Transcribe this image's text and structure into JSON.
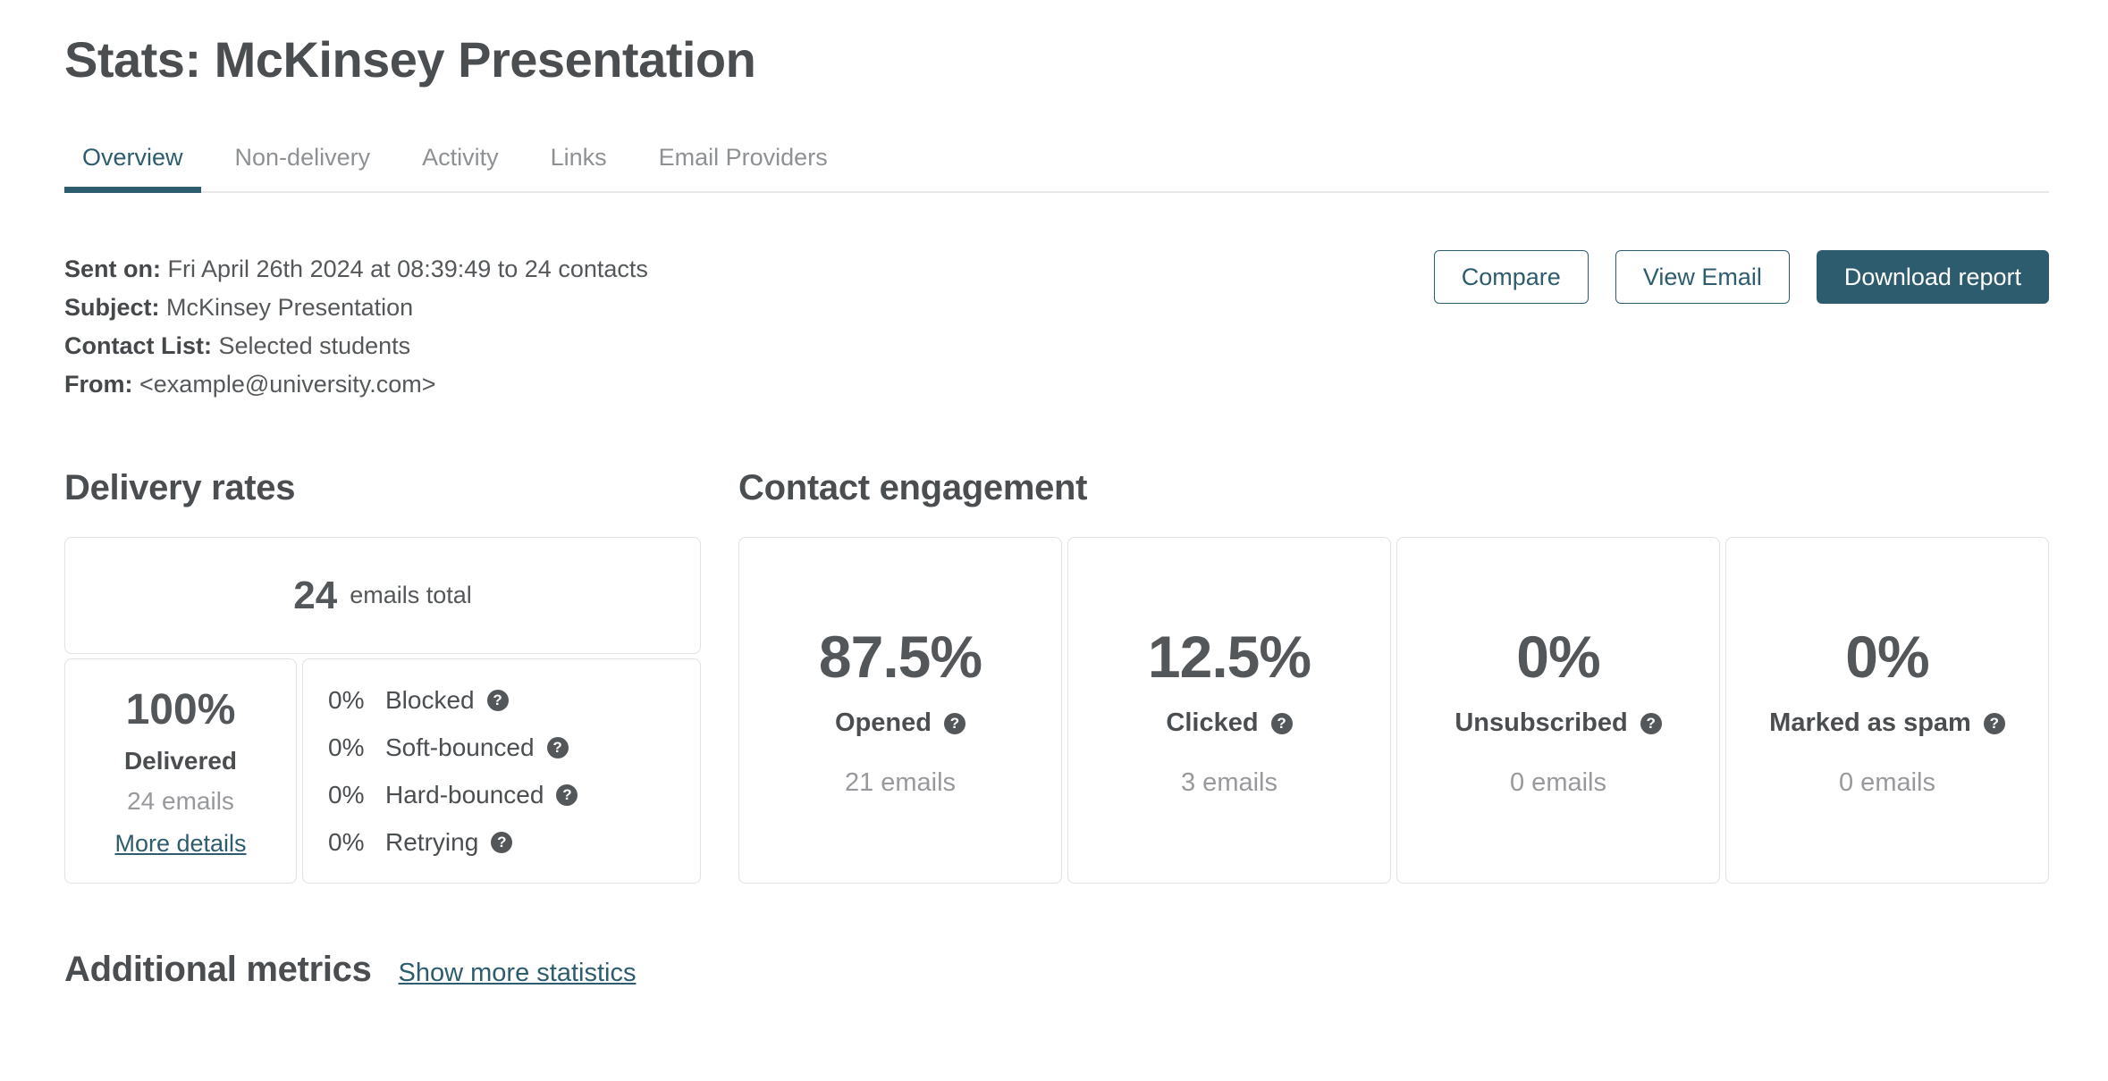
{
  "colors": {
    "accent": "#2e5c6f",
    "help_icon_bg": "#54575a",
    "muted_text": "#97999c"
  },
  "icons": {
    "help": "?"
  },
  "header": {
    "title": "Stats: McKinsey Presentation"
  },
  "tabs": [
    {
      "label": "Overview",
      "active": true
    },
    {
      "label": "Non-delivery",
      "active": false
    },
    {
      "label": "Activity",
      "active": false
    },
    {
      "label": "Links",
      "active": false
    },
    {
      "label": "Email Providers",
      "active": false
    }
  ],
  "campaign_meta": [
    {
      "label": "Sent on:",
      "value": "Fri April 26th 2024 at 08:39:49 to 24 contacts"
    },
    {
      "label": "Subject:",
      "value": "McKinsey Presentation"
    },
    {
      "label": "Contact List:",
      "value": "Selected students"
    },
    {
      "label": "From:",
      "value": "<example@university.com>"
    }
  ],
  "actions": {
    "compare": "Compare",
    "view_email": "View Email",
    "download_report": "Download report"
  },
  "delivery": {
    "heading": "Delivery rates",
    "total": {
      "value": "24",
      "label": "emails total"
    },
    "delivered": {
      "pct": "100%",
      "label": "Delivered",
      "emails": "24 emails",
      "link": "More details"
    },
    "breakdown": [
      {
        "pct": "0%",
        "label": "Blocked"
      },
      {
        "pct": "0%",
        "label": "Soft-bounced"
      },
      {
        "pct": "0%",
        "label": "Hard-bounced"
      },
      {
        "pct": "0%",
        "label": "Retrying"
      }
    ]
  },
  "engagement": {
    "heading": "Contact engagement",
    "cards": [
      {
        "pct": "87.5%",
        "label": "Opened",
        "emails": "21 emails"
      },
      {
        "pct": "12.5%",
        "label": "Clicked",
        "emails": "3 emails"
      },
      {
        "pct": "0%",
        "label": "Unsubscribed",
        "emails": "0 emails"
      },
      {
        "pct": "0%",
        "label": "Marked as spam",
        "emails": "0 emails"
      }
    ]
  },
  "additional": {
    "heading": "Additional metrics",
    "link": "Show more statistics"
  }
}
